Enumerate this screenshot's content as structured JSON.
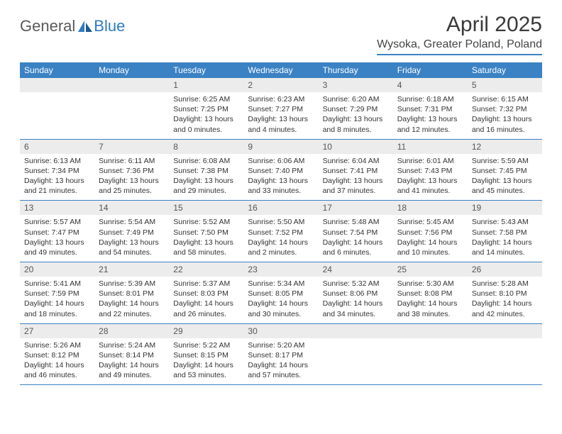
{
  "logo": {
    "part1": "General",
    "part2": "Blue"
  },
  "title": "April 2025",
  "location": "Wysoka, Greater Poland, Poland",
  "colors": {
    "header_bg": "#3b82c4",
    "header_text": "#ffffff",
    "daynum_bg": "#ececec",
    "divider": "#3b82c4",
    "logo_gray": "#5a5a5a",
    "logo_blue": "#2f7bbf"
  },
  "day_headers": [
    "Sunday",
    "Monday",
    "Tuesday",
    "Wednesday",
    "Thursday",
    "Friday",
    "Saturday"
  ],
  "weeks": [
    [
      null,
      null,
      {
        "n": "1",
        "sr": "6:25 AM",
        "ss": "7:25 PM",
        "dh": "13",
        "dm": "0"
      },
      {
        "n": "2",
        "sr": "6:23 AM",
        "ss": "7:27 PM",
        "dh": "13",
        "dm": "4"
      },
      {
        "n": "3",
        "sr": "6:20 AM",
        "ss": "7:29 PM",
        "dh": "13",
        "dm": "8"
      },
      {
        "n": "4",
        "sr": "6:18 AM",
        "ss": "7:31 PM",
        "dh": "13",
        "dm": "12"
      },
      {
        "n": "5",
        "sr": "6:15 AM",
        "ss": "7:32 PM",
        "dh": "13",
        "dm": "16"
      }
    ],
    [
      {
        "n": "6",
        "sr": "6:13 AM",
        "ss": "7:34 PM",
        "dh": "13",
        "dm": "21"
      },
      {
        "n": "7",
        "sr": "6:11 AM",
        "ss": "7:36 PM",
        "dh": "13",
        "dm": "25"
      },
      {
        "n": "8",
        "sr": "6:08 AM",
        "ss": "7:38 PM",
        "dh": "13",
        "dm": "29"
      },
      {
        "n": "9",
        "sr": "6:06 AM",
        "ss": "7:40 PM",
        "dh": "13",
        "dm": "33"
      },
      {
        "n": "10",
        "sr": "6:04 AM",
        "ss": "7:41 PM",
        "dh": "13",
        "dm": "37"
      },
      {
        "n": "11",
        "sr": "6:01 AM",
        "ss": "7:43 PM",
        "dh": "13",
        "dm": "41"
      },
      {
        "n": "12",
        "sr": "5:59 AM",
        "ss": "7:45 PM",
        "dh": "13",
        "dm": "45"
      }
    ],
    [
      {
        "n": "13",
        "sr": "5:57 AM",
        "ss": "7:47 PM",
        "dh": "13",
        "dm": "49"
      },
      {
        "n": "14",
        "sr": "5:54 AM",
        "ss": "7:49 PM",
        "dh": "13",
        "dm": "54"
      },
      {
        "n": "15",
        "sr": "5:52 AM",
        "ss": "7:50 PM",
        "dh": "13",
        "dm": "58"
      },
      {
        "n": "16",
        "sr": "5:50 AM",
        "ss": "7:52 PM",
        "dh": "14",
        "dm": "2"
      },
      {
        "n": "17",
        "sr": "5:48 AM",
        "ss": "7:54 PM",
        "dh": "14",
        "dm": "6"
      },
      {
        "n": "18",
        "sr": "5:45 AM",
        "ss": "7:56 PM",
        "dh": "14",
        "dm": "10"
      },
      {
        "n": "19",
        "sr": "5:43 AM",
        "ss": "7:58 PM",
        "dh": "14",
        "dm": "14"
      }
    ],
    [
      {
        "n": "20",
        "sr": "5:41 AM",
        "ss": "7:59 PM",
        "dh": "14",
        "dm": "18"
      },
      {
        "n": "21",
        "sr": "5:39 AM",
        "ss": "8:01 PM",
        "dh": "14",
        "dm": "22"
      },
      {
        "n": "22",
        "sr": "5:37 AM",
        "ss": "8:03 PM",
        "dh": "14",
        "dm": "26"
      },
      {
        "n": "23",
        "sr": "5:34 AM",
        "ss": "8:05 PM",
        "dh": "14",
        "dm": "30"
      },
      {
        "n": "24",
        "sr": "5:32 AM",
        "ss": "8:06 PM",
        "dh": "14",
        "dm": "34"
      },
      {
        "n": "25",
        "sr": "5:30 AM",
        "ss": "8:08 PM",
        "dh": "14",
        "dm": "38"
      },
      {
        "n": "26",
        "sr": "5:28 AM",
        "ss": "8:10 PM",
        "dh": "14",
        "dm": "42"
      }
    ],
    [
      {
        "n": "27",
        "sr": "5:26 AM",
        "ss": "8:12 PM",
        "dh": "14",
        "dm": "46"
      },
      {
        "n": "28",
        "sr": "5:24 AM",
        "ss": "8:14 PM",
        "dh": "14",
        "dm": "49"
      },
      {
        "n": "29",
        "sr": "5:22 AM",
        "ss": "8:15 PM",
        "dh": "14",
        "dm": "53"
      },
      {
        "n": "30",
        "sr": "5:20 AM",
        "ss": "8:17 PM",
        "dh": "14",
        "dm": "57"
      },
      null,
      null,
      null
    ]
  ],
  "labels": {
    "sunrise": "Sunrise:",
    "sunset": "Sunset:",
    "daylight": "Daylight:",
    "hours": "hours",
    "and": "and",
    "minutes": "minutes."
  }
}
